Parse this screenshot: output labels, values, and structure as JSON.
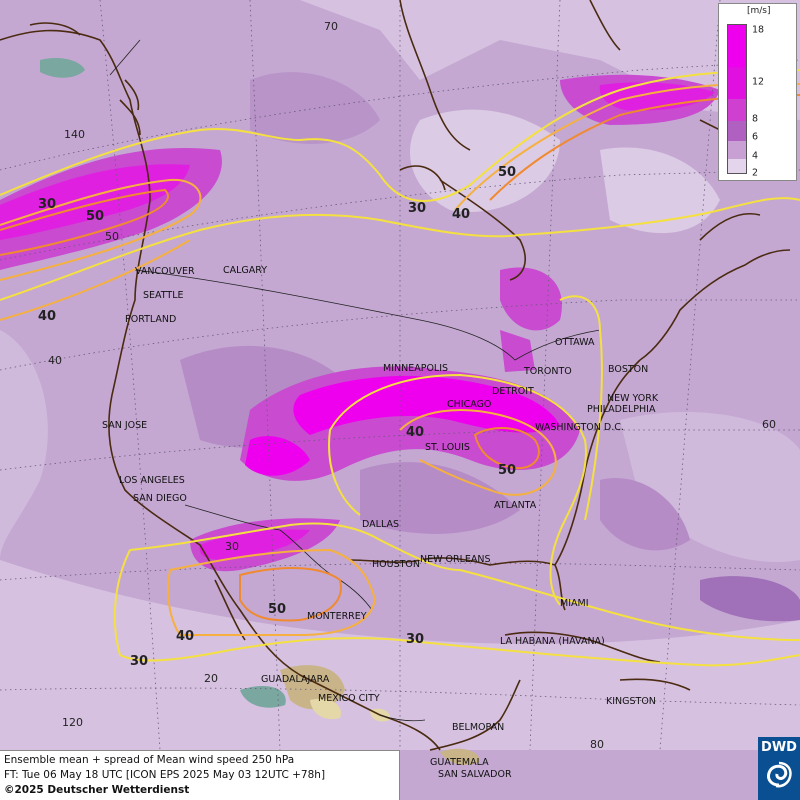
{
  "product": {
    "title": "Ensemble mean + spread of Mean wind speed 250 hPa",
    "forecast_time": "FT: Tue 06 May 18 UTC [ICON EPS 2025 May 03 12UTC +78h]",
    "copyright": "©2025 Deutscher Wetterdienst",
    "logo_text": "DWD"
  },
  "legend": {
    "unit": "[m/s]",
    "ticks": [
      "18",
      "12",
      "8",
      "6",
      "4",
      "2"
    ],
    "colors": [
      "#ee00ee",
      "#e010e0",
      "#d040d0",
      "#b060c0",
      "#c8a0d4",
      "#e4d4ec"
    ]
  },
  "grid_labels": [
    "70",
    "140",
    "50",
    "40",
    "60",
    "120",
    "20",
    "80",
    "30"
  ],
  "contour_labels": [
    "30",
    "50",
    "40",
    "30",
    "40",
    "50",
    "40",
    "50",
    "50",
    "40",
    "30",
    "30"
  ],
  "cities": [
    "VANCOUVER",
    "CALGARY",
    "SEATTLE",
    "PORTLAND",
    "SAN JOSE",
    "LOS ANGELES",
    "SAN DIEGO",
    "MINNEAPOLIS",
    "TORONTO",
    "OTTAWA",
    "BOSTON",
    "DETROIT",
    "CHICAGO",
    "NEW YORK",
    "PHILADELPHIA",
    "WASHINGTON D.C.",
    "ST. LOUIS",
    "ATLANTA",
    "DALLAS",
    "HOUSTON",
    "NEW ORLEANS",
    "MIAMI",
    "MONTERREY",
    "LA HABANA (HAVANA)",
    "GUADALAJARA",
    "MEXICO CITY",
    "KINGSTON",
    "BELMOPAN",
    "GUATEMALA",
    "SAN SALVADOR"
  ],
  "colors": {
    "background": "#c9b3d6",
    "coast": "#4a2a10",
    "contour_30": "#f4e040",
    "contour_40": "#f5b040",
    "contour_50": "#f08a30"
  }
}
